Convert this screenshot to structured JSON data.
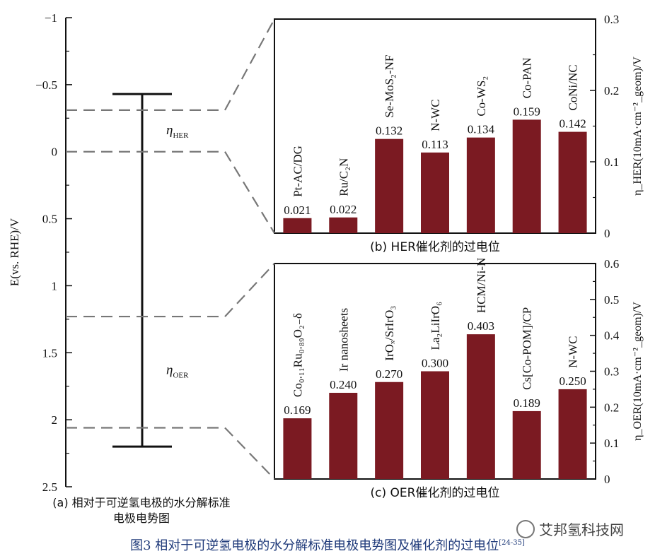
{
  "chart_data": [
    {
      "type": "range",
      "panel": "a",
      "ylabel": "E(vs. RHE)/V",
      "ylim": [
        -1,
        2.5
      ],
      "yticks": [
        "−1",
        "−0.5",
        "0",
        "0.5",
        "1",
        "1.5",
        "2",
        "2.5"
      ],
      "range": [
        -0.43,
        2.2
      ],
      "her_band": [
        -0.31,
        0
      ],
      "oer_band": [
        1.23,
        2.06
      ],
      "her_label": "η",
      "her_sub": "HER",
      "oer_label": "η",
      "oer_sub": "OER",
      "caption_line1": "(a) 相对于可逆氢电极的水分解标准",
      "caption_line2": "电极电势图"
    },
    {
      "type": "bar",
      "panel": "b",
      "categories": [
        "Pt-AC/DG",
        "Ru/C₂N",
        "Se-MoS₂-NF",
        "N-WC",
        "Co-WS₂",
        "Co-PAN",
        "CoNi/NC"
      ],
      "values": [
        0.021,
        0.022,
        0.132,
        0.113,
        0.134,
        0.159,
        0.142
      ],
      "value_labels": [
        "0.021",
        "0.022",
        "0.132",
        "0.113",
        "0.134",
        "0.159",
        "0.142"
      ],
      "ylim": [
        0,
        0.3
      ],
      "yticks": [
        "0",
        "0.1",
        "0.2",
        "0.3"
      ],
      "ylabel": "η_HER(10mA·cm⁻²_geom)/V",
      "caption": "(b) HER催化剂的过电位",
      "bar_color": "#7b1a22"
    },
    {
      "type": "bar",
      "panel": "c",
      "categories": [
        "Co₀.₁₁Ru₀.₈₉O₂₋δ",
        "Ir nanosheets",
        "IrOₓ/SrIrO₃",
        "La₂LiIrO₆",
        "HCM/Ni-N",
        "Cs[Co-POM]/CP",
        "N-WC"
      ],
      "values": [
        0.169,
        0.24,
        0.27,
        0.3,
        0.403,
        0.189,
        0.25
      ],
      "value_labels": [
        "0.169",
        "0.240",
        "0.270",
        "0.300",
        "0.403",
        "0.189",
        "0.250"
      ],
      "ylim": [
        0,
        0.6
      ],
      "yticks": [
        "0",
        "0.1",
        "0.2",
        "0.3",
        "0.4",
        "0.5",
        "0.6"
      ],
      "ylabel": "η_OER(10mA·cm⁻²_geom)/V",
      "caption": "(c) OER催化剂的过电位",
      "bar_color": "#7b1a22"
    }
  ],
  "figure_caption": "图3   相对于可逆氢电极的水分解标准电极电势图及催化剂的过电位",
  "figure_refs": "[24-35]",
  "watermark": "艾邦氢科技网"
}
